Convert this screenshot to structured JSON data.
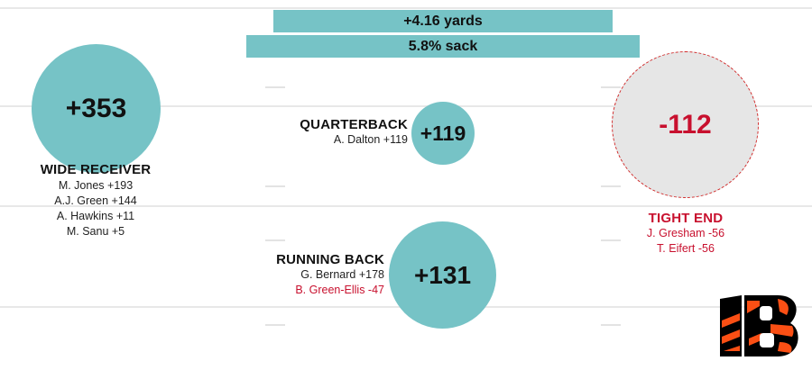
{
  "stats": {
    "yards": "+4.16 yards",
    "sack": "5.8% sack"
  },
  "positions": {
    "wide_receiver": {
      "total": "+353",
      "title": "WIDE RECEIVER",
      "players": [
        "M. Jones +193",
        "A.J. Green +144",
        "A. Hawkins +11",
        "M. Sanu +5"
      ]
    },
    "quarterback": {
      "total": "+119",
      "title": "QUARTERBACK",
      "players": [
        "A. Dalton +119"
      ]
    },
    "running_back": {
      "total": "+131",
      "title": "RUNNING BACK",
      "players": [
        "G. Bernard +178",
        "B. Green-Ellis -47"
      ]
    },
    "tight_end": {
      "total": "-112",
      "title": "TIGHT END",
      "players": [
        "J. Gresham -56",
        "T. Eifert -56"
      ]
    }
  },
  "logo": {
    "icon": "bengals-b-logo",
    "colors": [
      "#000000",
      "#fb4f14"
    ]
  },
  "colors": {
    "positive": "#76c3c6",
    "negative": "#c8102e",
    "negative_fill": "#e6e6e6"
  }
}
